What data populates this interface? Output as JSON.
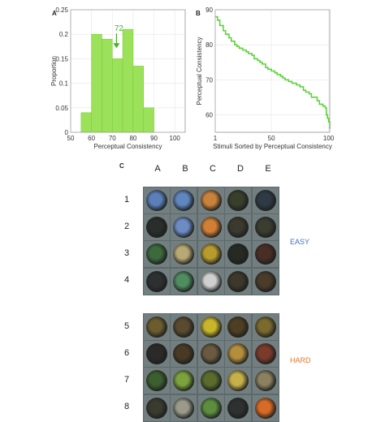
{
  "panel_letters": {
    "a": "A",
    "b": "B",
    "c": "C"
  },
  "chart_data": [
    {
      "type": "bar",
      "title": "",
      "xlabel": "Perceptual Consistency",
      "ylabel": "Proportion",
      "bin_edges": [
        50,
        55,
        60,
        65,
        70,
        75,
        80,
        85,
        90,
        95,
        100,
        105
      ],
      "values": [
        0,
        0.04,
        0.2,
        0.19,
        0.15,
        0.21,
        0.135,
        0.05,
        0,
        0,
        0
      ],
      "xlim": [
        50,
        105
      ],
      "ylim": [
        0,
        0.25
      ],
      "xticks": [
        "50",
        "60",
        "70",
        "80",
        "90",
        "100"
      ],
      "xtick_values": [
        50,
        60,
        70,
        80,
        90,
        100
      ],
      "yticks": [
        "0",
        "0.05",
        "0.1",
        "0.15",
        "0.2",
        "0.25"
      ],
      "ytick_values": [
        0,
        0.05,
        0.1,
        0.15,
        0.2,
        0.25
      ],
      "grid": true,
      "color": "#9be25a",
      "edge_color": "#7fcc3e",
      "annotation": {
        "text": "72",
        "x": 72,
        "y": 0.2,
        "color": "#4caf28"
      }
    },
    {
      "type": "line",
      "title": "",
      "xlabel": "Stimuli Sorted by Perceptual Consistency",
      "ylabel": "Perceptual Consistency",
      "x": [
        1,
        3,
        5,
        8,
        10,
        13,
        15,
        18,
        20,
        22,
        25,
        28,
        30,
        33,
        35,
        38,
        40,
        42,
        45,
        47,
        50,
        53,
        55,
        58,
        60,
        62,
        65,
        68,
        70,
        72,
        75,
        78,
        80,
        83,
        85,
        88,
        90,
        92,
        95,
        97,
        98,
        99,
        100,
        101
      ],
      "y": [
        88,
        87,
        85.5,
        84,
        83,
        82,
        81,
        80,
        79.5,
        79,
        78.5,
        78,
        77.5,
        77,
        76,
        75.5,
        75,
        74.5,
        73.5,
        73,
        72.5,
        72,
        71.5,
        71,
        70.5,
        70,
        69.5,
        69,
        69,
        68.5,
        68,
        67,
        66.5,
        66,
        65,
        65,
        64,
        63,
        62.5,
        62,
        60,
        59,
        58,
        56
      ],
      "xlim": [
        1,
        101
      ],
      "ylim": [
        55,
        90
      ],
      "xticks": [
        "1",
        "50",
        "100"
      ],
      "xtick_values": [
        1,
        50,
        100
      ],
      "yticks": [
        "60",
        "70",
        "80",
        "90"
      ],
      "ytick_values": [
        60,
        70,
        80,
        90
      ],
      "grid": true,
      "color": "#5ed23a"
    }
  ],
  "stimuli": {
    "columns": [
      "A",
      "B",
      "C",
      "D",
      "E"
    ],
    "rows": [
      "1",
      "2",
      "3",
      "4",
      "5",
      "6",
      "7",
      "8"
    ],
    "groups": [
      {
        "label": "EASY",
        "color": "#3f6fc4"
      },
      {
        "label": "HARD",
        "color": "#e4762e"
      }
    ],
    "tile_colors": [
      [
        "#5b7fb8",
        "#5f86c0",
        "#c9823c",
        "#3a3f2c",
        "#2f3a45"
      ],
      [
        "#2a2e2b",
        "#6d8cc4",
        "#d07f35",
        "#3c3a2f",
        "#3b3d30"
      ],
      [
        "#3d6a3d",
        "#b7a874",
        "#b89b2d",
        "#262a24",
        "#4a2e25"
      ],
      [
        "#2d3030",
        "#4f8c5f",
        "#cfcfcf",
        "#3d382b",
        "#4b3c2a"
      ],
      [
        "#6d5c2e",
        "#5a4a30",
        "#c9b52a",
        "#4f3f22",
        "#7b6a2e"
      ],
      [
        "#2c2a28",
        "#4a3a25",
        "#6b5a40",
        "#b58e3c",
        "#7b3a2a"
      ],
      [
        "#3c5f2f",
        "#7ba23c",
        "#5a6c2c",
        "#c7b04a",
        "#8c8060"
      ],
      [
        "#3a3a2f",
        "#9a9a8a",
        "#5d8e3f",
        "#2f3030",
        "#d66a26"
      ]
    ]
  }
}
